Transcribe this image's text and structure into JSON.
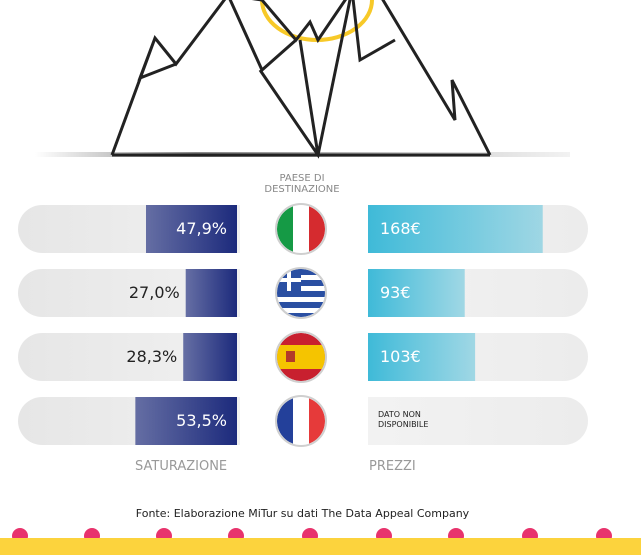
{
  "chart_data": {
    "type": "butterfly_bar",
    "center_label": "PAESE DI DESTINAZIONE",
    "categories": [
      null,
      null,
      null,
      null
    ],
    "series": [
      {
        "name": "SATURAZIONE",
        "color": "#1c2a7c",
        "values": [
          47.9,
          27.0,
          28.3,
          53.5
        ],
        "value_labels": [
          "47,9%",
          "27,0%",
          "28,3%",
          "53,5%"
        ]
      },
      {
        "name": "PREZZI",
        "color": "#3fbad8",
        "values": [
          168,
          93,
          103,
          null
        ],
        "value_labels": [
          "168€",
          "93€",
          "103€",
          "DATO NON DISPONIBILE"
        ]
      }
    ],
    "source": "Fonte: Elaborazione MiTur su dati The Data Appeal Company"
  }
}
